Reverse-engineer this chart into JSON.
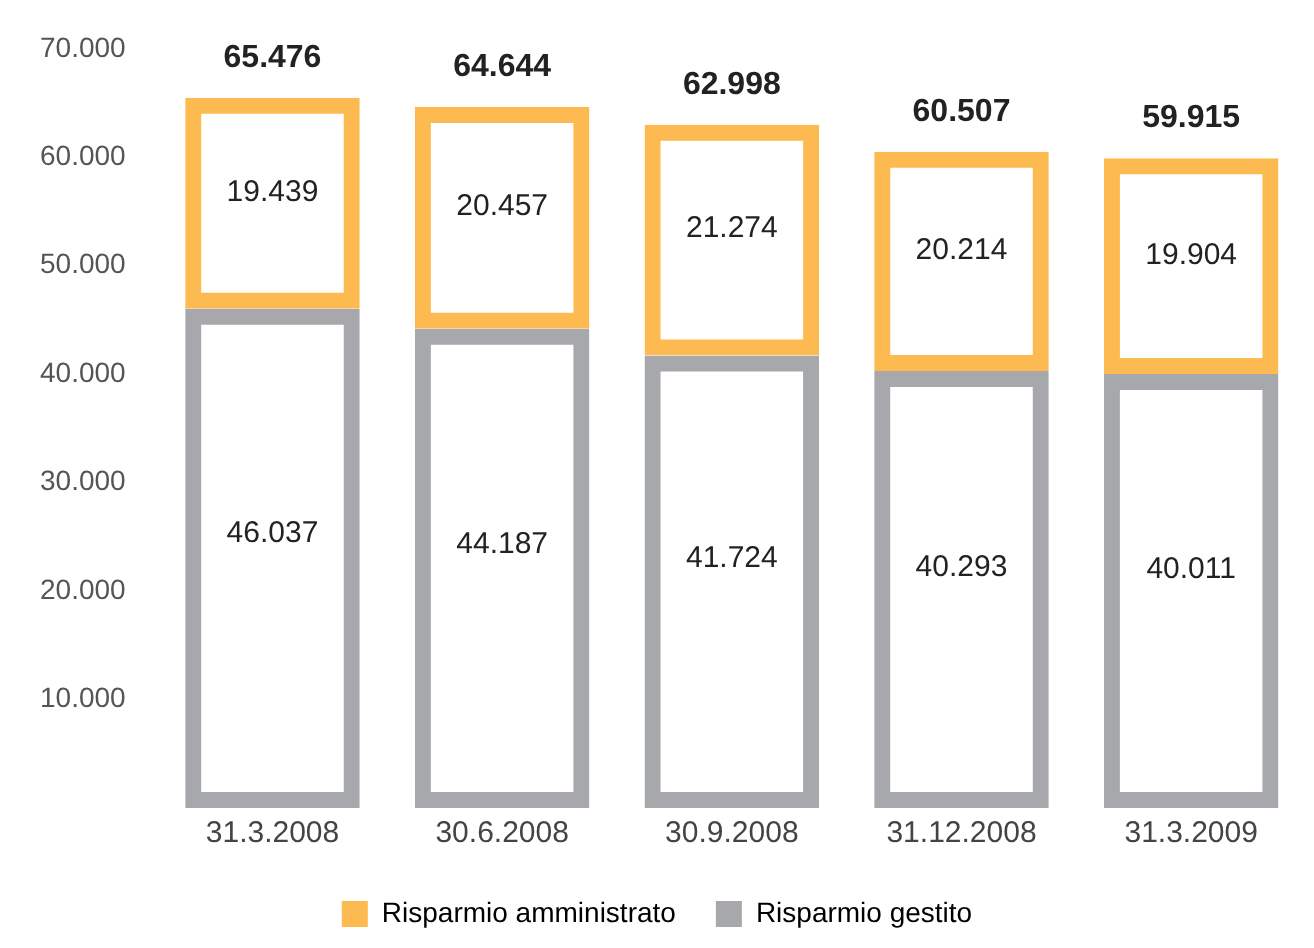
{
  "chart_data": {
    "type": "bar",
    "stacked": true,
    "categories": [
      "31.3.2008",
      "30.6.2008",
      "30.9.2008",
      "31.12.2008",
      "31.3.2009"
    ],
    "series": [
      {
        "name": "Risparmio gestito",
        "color": "#a7a8ab",
        "values": [
          46037,
          44187,
          41724,
          40293,
          40011
        ],
        "value_labels": [
          "46.037",
          "44.187",
          "41.724",
          "40.293",
          "40.011"
        ]
      },
      {
        "name": "Risparmio amministrato",
        "color": "#fdba50",
        "values": [
          19439,
          20457,
          21274,
          20214,
          19904
        ],
        "value_labels": [
          "19.439",
          "20.457",
          "21.274",
          "20.214",
          "19.904"
        ]
      }
    ],
    "totals": [
      "65.476",
      "64.644",
      "62.998",
      "60.507",
      "59.915"
    ],
    "ylim": [
      0,
      70000
    ],
    "yticks": [
      {
        "value": 10000,
        "label": "10.000"
      },
      {
        "value": 20000,
        "label": "20.000"
      },
      {
        "value": 30000,
        "label": "30.000"
      },
      {
        "value": 40000,
        "label": "40.000"
      },
      {
        "value": 50000,
        "label": "50.000"
      },
      {
        "value": 60000,
        "label": "60.000"
      },
      {
        "value": 70000,
        "label": "70.000"
      }
    ],
    "grid": false,
    "legend": "bottom"
  }
}
